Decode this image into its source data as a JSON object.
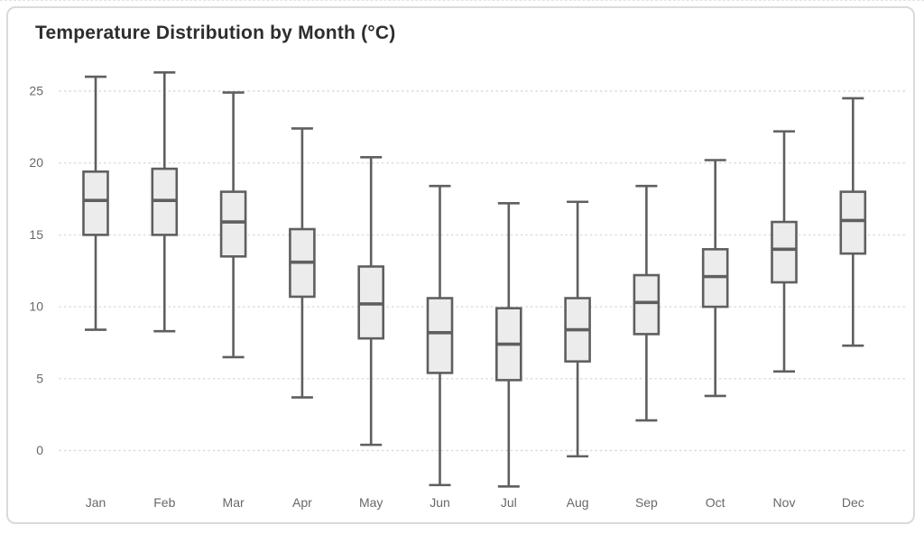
{
  "chart_data": {
    "type": "box",
    "title": "Temperature Distribution by Month (°C)",
    "xlabel": "",
    "ylabel": "",
    "y_ticks": [
      0,
      5,
      10,
      15,
      20,
      25
    ],
    "ylim": [
      -4.5,
      27.5
    ],
    "grid": "horizontal-dotted",
    "legend": "none",
    "categories": [
      "Jan",
      "Feb",
      "Mar",
      "Apr",
      "May",
      "Jun",
      "Jul",
      "Aug",
      "Sep",
      "Oct",
      "Nov",
      "Dec"
    ],
    "boxes": [
      {
        "label": "Jan",
        "min": 8.4,
        "q1": 15.0,
        "median": 17.4,
        "q3": 19.4,
        "max": 26.0
      },
      {
        "label": "Feb",
        "min": 8.3,
        "q1": 15.0,
        "median": 17.4,
        "q3": 19.6,
        "max": 26.3
      },
      {
        "label": "Mar",
        "min": 6.5,
        "q1": 13.5,
        "median": 15.9,
        "q3": 18.0,
        "max": 24.9
      },
      {
        "label": "Apr",
        "min": 3.7,
        "q1": 10.7,
        "median": 13.1,
        "q3": 15.4,
        "max": 22.4
      },
      {
        "label": "May",
        "min": 0.4,
        "q1": 7.8,
        "median": 10.2,
        "q3": 12.8,
        "max": 20.4
      },
      {
        "label": "Jun",
        "min": -2.4,
        "q1": 5.4,
        "median": 8.2,
        "q3": 10.6,
        "max": 18.4
      },
      {
        "label": "Jul",
        "min": -2.5,
        "q1": 4.9,
        "median": 7.4,
        "q3": 9.9,
        "max": 17.2
      },
      {
        "label": "Aug",
        "min": -0.4,
        "q1": 6.2,
        "median": 8.4,
        "q3": 10.6,
        "max": 17.3
      },
      {
        "label": "Sep",
        "min": 2.1,
        "q1": 8.1,
        "median": 10.3,
        "q3": 12.2,
        "max": 18.4
      },
      {
        "label": "Oct",
        "min": 3.8,
        "q1": 10.0,
        "median": 12.1,
        "q3": 14.0,
        "max": 20.2
      },
      {
        "label": "Nov",
        "min": 5.5,
        "q1": 11.7,
        "median": 14.0,
        "q3": 15.9,
        "max": 22.2
      },
      {
        "label": "Dec",
        "min": 7.3,
        "q1": 13.7,
        "median": 16.0,
        "q3": 18.0,
        "max": 24.5
      }
    ],
    "colors": {
      "box_fill": "#ececec",
      "box_stroke": "#5f5f5f",
      "grid": "#d9d9d9",
      "tick_label": "#686868",
      "title": "#2d2d2d",
      "card_border": "#dadada",
      "background": "#ffffff"
    }
  }
}
